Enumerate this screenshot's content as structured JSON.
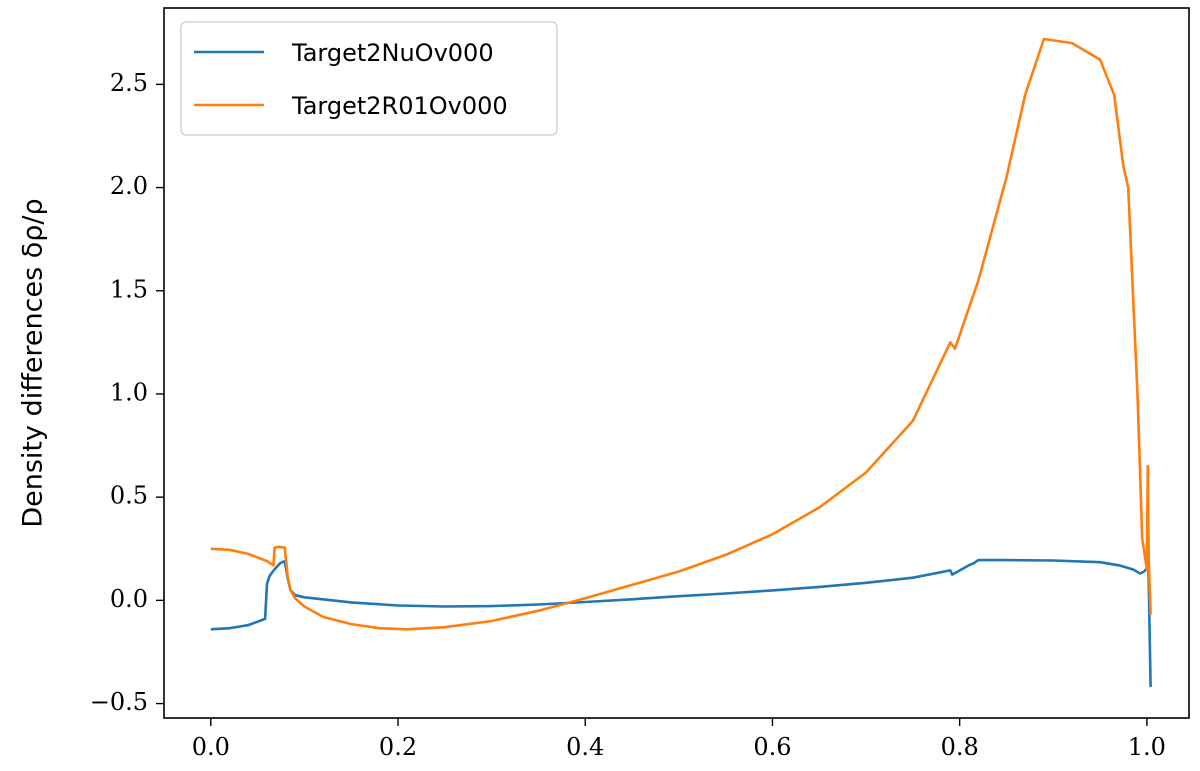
{
  "chart_data": {
    "type": "line",
    "title": "",
    "xlabel": "",
    "ylabel": "Density differences δρ/ρ",
    "xlim": [
      -0.05,
      1.045
    ],
    "ylim": [
      -0.57,
      2.87
    ],
    "x_ticks": [
      0.0,
      0.2,
      0.4,
      0.6,
      0.8,
      1.0
    ],
    "x_tick_labels": [
      "0.0",
      "0.2",
      "0.4",
      "0.6",
      "0.8",
      "1.0"
    ],
    "y_ticks": [
      -0.5,
      0.0,
      0.5,
      1.0,
      1.5,
      2.0,
      2.5
    ],
    "y_tick_labels": [
      "−0.5",
      "0.0",
      "0.5",
      "1.0",
      "1.5",
      "2.0",
      "2.5"
    ],
    "grid": false,
    "legend_position": "top-left",
    "series": [
      {
        "name": "Target2NuOv000",
        "color": "#1f77b4",
        "points": [
          [
            0.0,
            -0.14
          ],
          [
            0.02,
            -0.135
          ],
          [
            0.04,
            -0.12
          ],
          [
            0.058,
            -0.09
          ],
          [
            0.06,
            0.08
          ],
          [
            0.063,
            0.12
          ],
          [
            0.068,
            0.15
          ],
          [
            0.074,
            0.18
          ],
          [
            0.079,
            0.19
          ],
          [
            0.082,
            0.11
          ],
          [
            0.085,
            0.05
          ],
          [
            0.09,
            0.025
          ],
          [
            0.1,
            0.015
          ],
          [
            0.15,
            -0.01
          ],
          [
            0.2,
            -0.025
          ],
          [
            0.25,
            -0.03
          ],
          [
            0.3,
            -0.028
          ],
          [
            0.35,
            -0.02
          ],
          [
            0.4,
            -0.008
          ],
          [
            0.45,
            0.005
          ],
          [
            0.5,
            0.02
          ],
          [
            0.55,
            0.033
          ],
          [
            0.6,
            0.048
          ],
          [
            0.65,
            0.065
          ],
          [
            0.7,
            0.085
          ],
          [
            0.75,
            0.11
          ],
          [
            0.79,
            0.145
          ],
          [
            0.792,
            0.125
          ],
          [
            0.81,
            0.17
          ],
          [
            0.815,
            0.18
          ],
          [
            0.82,
            0.195
          ],
          [
            0.85,
            0.195
          ],
          [
            0.9,
            0.193
          ],
          [
            0.95,
            0.185
          ],
          [
            0.97,
            0.17
          ],
          [
            0.985,
            0.15
          ],
          [
            0.993,
            0.13
          ],
          [
            0.997,
            0.14
          ],
          [
            1.0,
            0.155
          ],
          [
            1.001,
            0.22
          ],
          [
            1.002,
            0.1
          ],
          [
            1.004,
            -0.42
          ]
        ]
      },
      {
        "name": "Target2R01Ov000",
        "color": "#ff7f0e",
        "points": [
          [
            0.0,
            0.25
          ],
          [
            0.02,
            0.245
          ],
          [
            0.04,
            0.225
          ],
          [
            0.06,
            0.19
          ],
          [
            0.067,
            0.17
          ],
          [
            0.068,
            0.255
          ],
          [
            0.072,
            0.26
          ],
          [
            0.079,
            0.255
          ],
          [
            0.082,
            0.12
          ],
          [
            0.085,
            0.05
          ],
          [
            0.09,
            0.01
          ],
          [
            0.1,
            -0.03
          ],
          [
            0.12,
            -0.08
          ],
          [
            0.15,
            -0.115
          ],
          [
            0.18,
            -0.135
          ],
          [
            0.21,
            -0.14
          ],
          [
            0.25,
            -0.13
          ],
          [
            0.3,
            -0.1
          ],
          [
            0.35,
            -0.05
          ],
          [
            0.4,
            0.01
          ],
          [
            0.45,
            0.075
          ],
          [
            0.5,
            0.14
          ],
          [
            0.55,
            0.22
          ],
          [
            0.6,
            0.32
          ],
          [
            0.65,
            0.45
          ],
          [
            0.7,
            0.62
          ],
          [
            0.75,
            0.87
          ],
          [
            0.79,
            1.25
          ],
          [
            0.795,
            1.22
          ],
          [
            0.82,
            1.55
          ],
          [
            0.85,
            2.05
          ],
          [
            0.87,
            2.45
          ],
          [
            0.89,
            2.72
          ],
          [
            0.92,
            2.7
          ],
          [
            0.95,
            2.62
          ],
          [
            0.965,
            2.45
          ],
          [
            0.975,
            2.1
          ],
          [
            0.98,
            2.0
          ],
          [
            0.99,
            1.0
          ],
          [
            0.995,
            0.3
          ],
          [
            1.0,
            0.15
          ],
          [
            1.001,
            0.65
          ],
          [
            1.002,
            0.2
          ],
          [
            1.004,
            -0.07
          ]
        ]
      }
    ]
  }
}
